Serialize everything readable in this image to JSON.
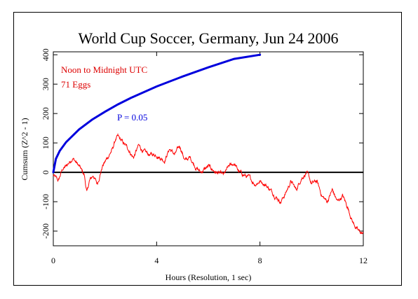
{
  "chart_data": {
    "type": "line",
    "title": "World Cup Soccer, Germany, Jun 24 2006",
    "xlabel": "Hours (Resolution, 1 sec)",
    "ylabel": "Cumsum (Z^2 - 1)",
    "xlim": [
      0,
      12
    ],
    "ylim": [
      -250,
      410
    ],
    "xticks": [
      0,
      4,
      8,
      12
    ],
    "yticks": [
      -200,
      -100,
      0,
      100,
      200,
      300,
      400
    ],
    "annotations": [
      "Noon to Midnight UTC",
      "71 Eggs"
    ],
    "colors": {
      "cumsum": "#ff0000",
      "envelope": "#0000dd",
      "baseline": "#000000",
      "info_text": "#dd0000"
    },
    "series": [
      {
        "name": "P = 0.05",
        "kind": "probability-envelope",
        "x": [
          0,
          0.1,
          0.25,
          0.5,
          1,
          1.5,
          2,
          2.5,
          3,
          4,
          5,
          6,
          7,
          8
        ],
        "y": [
          0,
          46,
          73,
          103,
          146,
          179,
          206,
          231,
          253,
          292,
          326,
          357,
          386,
          400
        ]
      },
      {
        "kind": "cumulative-deviation",
        "x": [
          0,
          0.2,
          0.35,
          0.5,
          0.75,
          1.0,
          1.2,
          1.3,
          1.4,
          1.55,
          1.7,
          1.9,
          2.1,
          2.3,
          2.4,
          2.5,
          2.7,
          2.9,
          3.1,
          3.3,
          3.5,
          3.7,
          4.0,
          4.3,
          4.5,
          4.7,
          4.9,
          5.1,
          5.3,
          5.5,
          5.7,
          6.0,
          6.3,
          6.6,
          6.8,
          7.0,
          7.2,
          7.4,
          7.6,
          7.8,
          8.0,
          8.2,
          8.4,
          8.6,
          8.8,
          9.0,
          9.2,
          9.4,
          9.6,
          9.8,
          10.0,
          10.2,
          10.4,
          10.6,
          10.8,
          11.0,
          11.2,
          11.4,
          11.6,
          11.8,
          12.0
        ],
        "y": [
          -10,
          -30,
          10,
          20,
          50,
          20,
          -10,
          -70,
          -30,
          -10,
          -40,
          20,
          50,
          80,
          110,
          120,
          100,
          80,
          50,
          90,
          70,
          60,
          60,
          40,
          80,
          60,
          90,
          40,
          50,
          20,
          0,
          20,
          0,
          -10,
          20,
          30,
          0,
          -10,
          -20,
          -40,
          -30,
          -40,
          -60,
          -80,
          -100,
          -70,
          -30,
          -60,
          -20,
          0,
          -40,
          -30,
          -80,
          -100,
          -60,
          -100,
          -80,
          -120,
          -170,
          -200,
          -210
        ]
      }
    ]
  }
}
